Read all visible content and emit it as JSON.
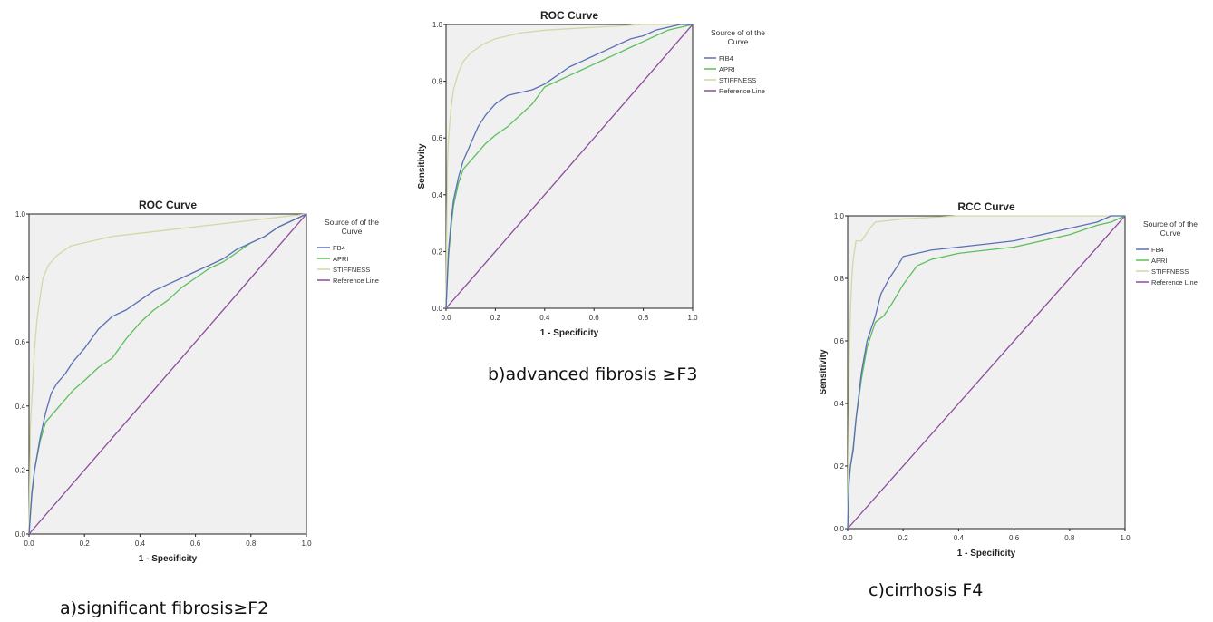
{
  "captions": {
    "a": "a)significant fibrosis≥F2",
    "b": "b)advanced fibrosis  ≥F3",
    "c": "c)cirrhosis F4"
  },
  "colors": {
    "plot_bg": "#f0f0f0",
    "FIB4": "#5a6fb5",
    "APRI": "#5cbf5c",
    "STIFFNESS": "#d6d6a8",
    "ReferenceLine": "#8e4a9e"
  },
  "chart_data": [
    {
      "type": "line",
      "title": "ROC Curve",
      "xlabel": "1 - Specificity",
      "ylabel": "",
      "xlim": [
        0,
        1
      ],
      "ylim": [
        0,
        1
      ],
      "x_ticks": [
        "0.0",
        "0.2",
        "0.4",
        "0.6",
        "0.8",
        "1.0"
      ],
      "y_ticks": [
        "0.0",
        "0.2",
        "0.4",
        "0.6",
        "0.8",
        "1.0"
      ],
      "legend_title": "Source of the Curve",
      "legend_position": "right",
      "grid": false,
      "series": [
        {
          "name": "FB4",
          "color_key": "FIB4",
          "points": [
            [
              0,
              0
            ],
            [
              0.01,
              0.13
            ],
            [
              0.02,
              0.2
            ],
            [
              0.04,
              0.3
            ],
            [
              0.06,
              0.38
            ],
            [
              0.08,
              0.44
            ],
            [
              0.1,
              0.47
            ],
            [
              0.13,
              0.5
            ],
            [
              0.16,
              0.54
            ],
            [
              0.2,
              0.58
            ],
            [
              0.25,
              0.64
            ],
            [
              0.3,
              0.68
            ],
            [
              0.35,
              0.7
            ],
            [
              0.4,
              0.73
            ],
            [
              0.45,
              0.76
            ],
            [
              0.5,
              0.78
            ],
            [
              0.55,
              0.8
            ],
            [
              0.6,
              0.82
            ],
            [
              0.65,
              0.84
            ],
            [
              0.7,
              0.86
            ],
            [
              0.75,
              0.89
            ],
            [
              0.8,
              0.91
            ],
            [
              0.85,
              0.93
            ],
            [
              0.9,
              0.96
            ],
            [
              0.95,
              0.98
            ],
            [
              1,
              1
            ]
          ]
        },
        {
          "name": "APRI",
          "color_key": "APRI",
          "points": [
            [
              0,
              0
            ],
            [
              0.01,
              0.12
            ],
            [
              0.02,
              0.2
            ],
            [
              0.04,
              0.29
            ],
            [
              0.06,
              0.35
            ],
            [
              0.08,
              0.37
            ],
            [
              0.1,
              0.39
            ],
            [
              0.13,
              0.42
            ],
            [
              0.16,
              0.45
            ],
            [
              0.2,
              0.48
            ],
            [
              0.25,
              0.52
            ],
            [
              0.3,
              0.55
            ],
            [
              0.35,
              0.61
            ],
            [
              0.4,
              0.66
            ],
            [
              0.45,
              0.7
            ],
            [
              0.5,
              0.73
            ],
            [
              0.55,
              0.77
            ],
            [
              0.6,
              0.8
            ],
            [
              0.65,
              0.83
            ],
            [
              0.7,
              0.85
            ],
            [
              0.75,
              0.88
            ],
            [
              0.8,
              0.91
            ],
            [
              0.85,
              0.93
            ],
            [
              0.9,
              0.96
            ],
            [
              0.95,
              0.98
            ],
            [
              1,
              1
            ]
          ]
        },
        {
          "name": "STIFFNESS",
          "color_key": "STIFFNESS",
          "points": [
            [
              0,
              0
            ],
            [
              0.005,
              0.34
            ],
            [
              0.01,
              0.42
            ],
            [
              0.02,
              0.58
            ],
            [
              0.03,
              0.68
            ],
            [
              0.04,
              0.74
            ],
            [
              0.05,
              0.8
            ],
            [
              0.07,
              0.84
            ],
            [
              0.1,
              0.87
            ],
            [
              0.15,
              0.9
            ],
            [
              0.2,
              0.91
            ],
            [
              0.3,
              0.93
            ],
            [
              0.4,
              0.94
            ],
            [
              0.5,
              0.95
            ],
            [
              0.6,
              0.96
            ],
            [
              0.7,
              0.97
            ],
            [
              0.8,
              0.98
            ],
            [
              0.9,
              0.99
            ],
            [
              1,
              1
            ]
          ]
        },
        {
          "name": "Reference Line",
          "color_key": "ReferenceLine",
          "points": [
            [
              0,
              0
            ],
            [
              1,
              1
            ]
          ]
        }
      ]
    },
    {
      "type": "line",
      "title": "ROC Curve",
      "xlabel": "1 - Specificity",
      "ylabel": "Sensitivity",
      "xlim": [
        0,
        1
      ],
      "ylim": [
        0,
        1
      ],
      "x_ticks": [
        "0.0",
        "0.2",
        "0.4",
        "0.6",
        "0.8",
        "1.0"
      ],
      "y_ticks": [
        "0.0",
        "0.2",
        "0.4",
        "0.6",
        "0.8",
        "1.0"
      ],
      "legend_title": "Source of the Curve",
      "legend_position": "right",
      "grid": false,
      "series": [
        {
          "name": "FIB4",
          "color_key": "FIB4",
          "points": [
            [
              0,
              0
            ],
            [
              0.01,
              0.2
            ],
            [
              0.02,
              0.3
            ],
            [
              0.03,
              0.38
            ],
            [
              0.05,
              0.46
            ],
            [
              0.07,
              0.52
            ],
            [
              0.1,
              0.58
            ],
            [
              0.13,
              0.64
            ],
            [
              0.16,
              0.68
            ],
            [
              0.2,
              0.72
            ],
            [
              0.25,
              0.75
            ],
            [
              0.3,
              0.76
            ],
            [
              0.35,
              0.77
            ],
            [
              0.4,
              0.79
            ],
            [
              0.45,
              0.82
            ],
            [
              0.5,
              0.85
            ],
            [
              0.55,
              0.87
            ],
            [
              0.6,
              0.89
            ],
            [
              0.65,
              0.91
            ],
            [
              0.7,
              0.93
            ],
            [
              0.75,
              0.95
            ],
            [
              0.8,
              0.96
            ],
            [
              0.85,
              0.98
            ],
            [
              0.9,
              0.99
            ],
            [
              0.95,
              1
            ],
            [
              1,
              1
            ]
          ]
        },
        {
          "name": "APRI",
          "color_key": "APRI",
          "points": [
            [
              0,
              0
            ],
            [
              0.01,
              0.18
            ],
            [
              0.02,
              0.28
            ],
            [
              0.03,
              0.36
            ],
            [
              0.05,
              0.44
            ],
            [
              0.07,
              0.49
            ],
            [
              0.1,
              0.52
            ],
            [
              0.13,
              0.55
            ],
            [
              0.16,
              0.58
            ],
            [
              0.2,
              0.61
            ],
            [
              0.25,
              0.64
            ],
            [
              0.3,
              0.68
            ],
            [
              0.35,
              0.72
            ],
            [
              0.4,
              0.78
            ],
            [
              0.45,
              0.8
            ],
            [
              0.5,
              0.82
            ],
            [
              0.55,
              0.84
            ],
            [
              0.6,
              0.86
            ],
            [
              0.65,
              0.88
            ],
            [
              0.7,
              0.9
            ],
            [
              0.75,
              0.92
            ],
            [
              0.8,
              0.94
            ],
            [
              0.85,
              0.96
            ],
            [
              0.9,
              0.98
            ],
            [
              0.95,
              0.99
            ],
            [
              1,
              1
            ]
          ]
        },
        {
          "name": "STIFFNESS",
          "color_key": "STIFFNESS",
          "points": [
            [
              0,
              0
            ],
            [
              0.005,
              0.5
            ],
            [
              0.01,
              0.6
            ],
            [
              0.02,
              0.7
            ],
            [
              0.03,
              0.77
            ],
            [
              0.05,
              0.83
            ],
            [
              0.07,
              0.87
            ],
            [
              0.1,
              0.9
            ],
            [
              0.15,
              0.93
            ],
            [
              0.2,
              0.95
            ],
            [
              0.3,
              0.97
            ],
            [
              0.4,
              0.98
            ],
            [
              0.5,
              0.985
            ],
            [
              0.6,
              0.99
            ],
            [
              0.7,
              0.995
            ],
            [
              0.8,
              1
            ],
            [
              1,
              1
            ]
          ]
        },
        {
          "name": "Reference Line",
          "color_key": "ReferenceLine",
          "points": [
            [
              0,
              0
            ],
            [
              1,
              1
            ]
          ]
        }
      ]
    },
    {
      "type": "line",
      "title": "RCC Curve",
      "xlabel": "1 - Specificity",
      "ylabel": "Sensitivity",
      "xlim": [
        0,
        1
      ],
      "ylim": [
        0,
        1
      ],
      "x_ticks": [
        "0.0",
        "0.2",
        "0.4",
        "0.6",
        "0.8",
        "1.0"
      ],
      "y_ticks": [
        "0.0",
        "0.2",
        "0.4",
        "0.6",
        "0.8",
        "1.0"
      ],
      "legend_title": "Source of the Curve",
      "legend_position": "right",
      "grid": false,
      "series": [
        {
          "name": "FB4",
          "color_key": "FIB4",
          "points": [
            [
              0,
              0
            ],
            [
              0.005,
              0.15
            ],
            [
              0.01,
              0.2
            ],
            [
              0.02,
              0.25
            ],
            [
              0.03,
              0.35
            ],
            [
              0.05,
              0.5
            ],
            [
              0.07,
              0.6
            ],
            [
              0.1,
              0.68
            ],
            [
              0.12,
              0.75
            ],
            [
              0.15,
              0.8
            ],
            [
              0.18,
              0.84
            ],
            [
              0.2,
              0.87
            ],
            [
              0.25,
              0.88
            ],
            [
              0.3,
              0.89
            ],
            [
              0.4,
              0.9
            ],
            [
              0.5,
              0.91
            ],
            [
              0.6,
              0.92
            ],
            [
              0.7,
              0.94
            ],
            [
              0.8,
              0.96
            ],
            [
              0.9,
              0.98
            ],
            [
              0.95,
              1
            ],
            [
              1,
              1
            ]
          ]
        },
        {
          "name": "APRI",
          "color_key": "APRI",
          "points": [
            [
              0,
              0
            ],
            [
              0.005,
              0.14
            ],
            [
              0.01,
              0.2
            ],
            [
              0.02,
              0.26
            ],
            [
              0.03,
              0.35
            ],
            [
              0.05,
              0.48
            ],
            [
              0.07,
              0.58
            ],
            [
              0.1,
              0.66
            ],
            [
              0.13,
              0.68
            ],
            [
              0.16,
              0.72
            ],
            [
              0.2,
              0.78
            ],
            [
              0.25,
              0.84
            ],
            [
              0.3,
              0.86
            ],
            [
              0.4,
              0.88
            ],
            [
              0.5,
              0.89
            ],
            [
              0.6,
              0.9
            ],
            [
              0.7,
              0.92
            ],
            [
              0.8,
              0.94
            ],
            [
              0.9,
              0.97
            ],
            [
              0.95,
              0.98
            ],
            [
              1,
              1
            ]
          ]
        },
        {
          "name": "STIFFNESS",
          "color_key": "STIFFNESS",
          "points": [
            [
              0,
              0
            ],
            [
              0.005,
              0.5
            ],
            [
              0.01,
              0.7
            ],
            [
              0.015,
              0.8
            ],
            [
              0.02,
              0.86
            ],
            [
              0.03,
              0.92
            ],
            [
              0.05,
              0.92
            ],
            [
              0.08,
              0.96
            ],
            [
              0.1,
              0.98
            ],
            [
              0.2,
              0.99
            ],
            [
              0.4,
              1
            ],
            [
              1,
              1
            ]
          ]
        },
        {
          "name": "Reference Line",
          "color_key": "ReferenceLine",
          "points": [
            [
              0,
              0
            ],
            [
              1,
              1
            ]
          ]
        }
      ]
    }
  ]
}
